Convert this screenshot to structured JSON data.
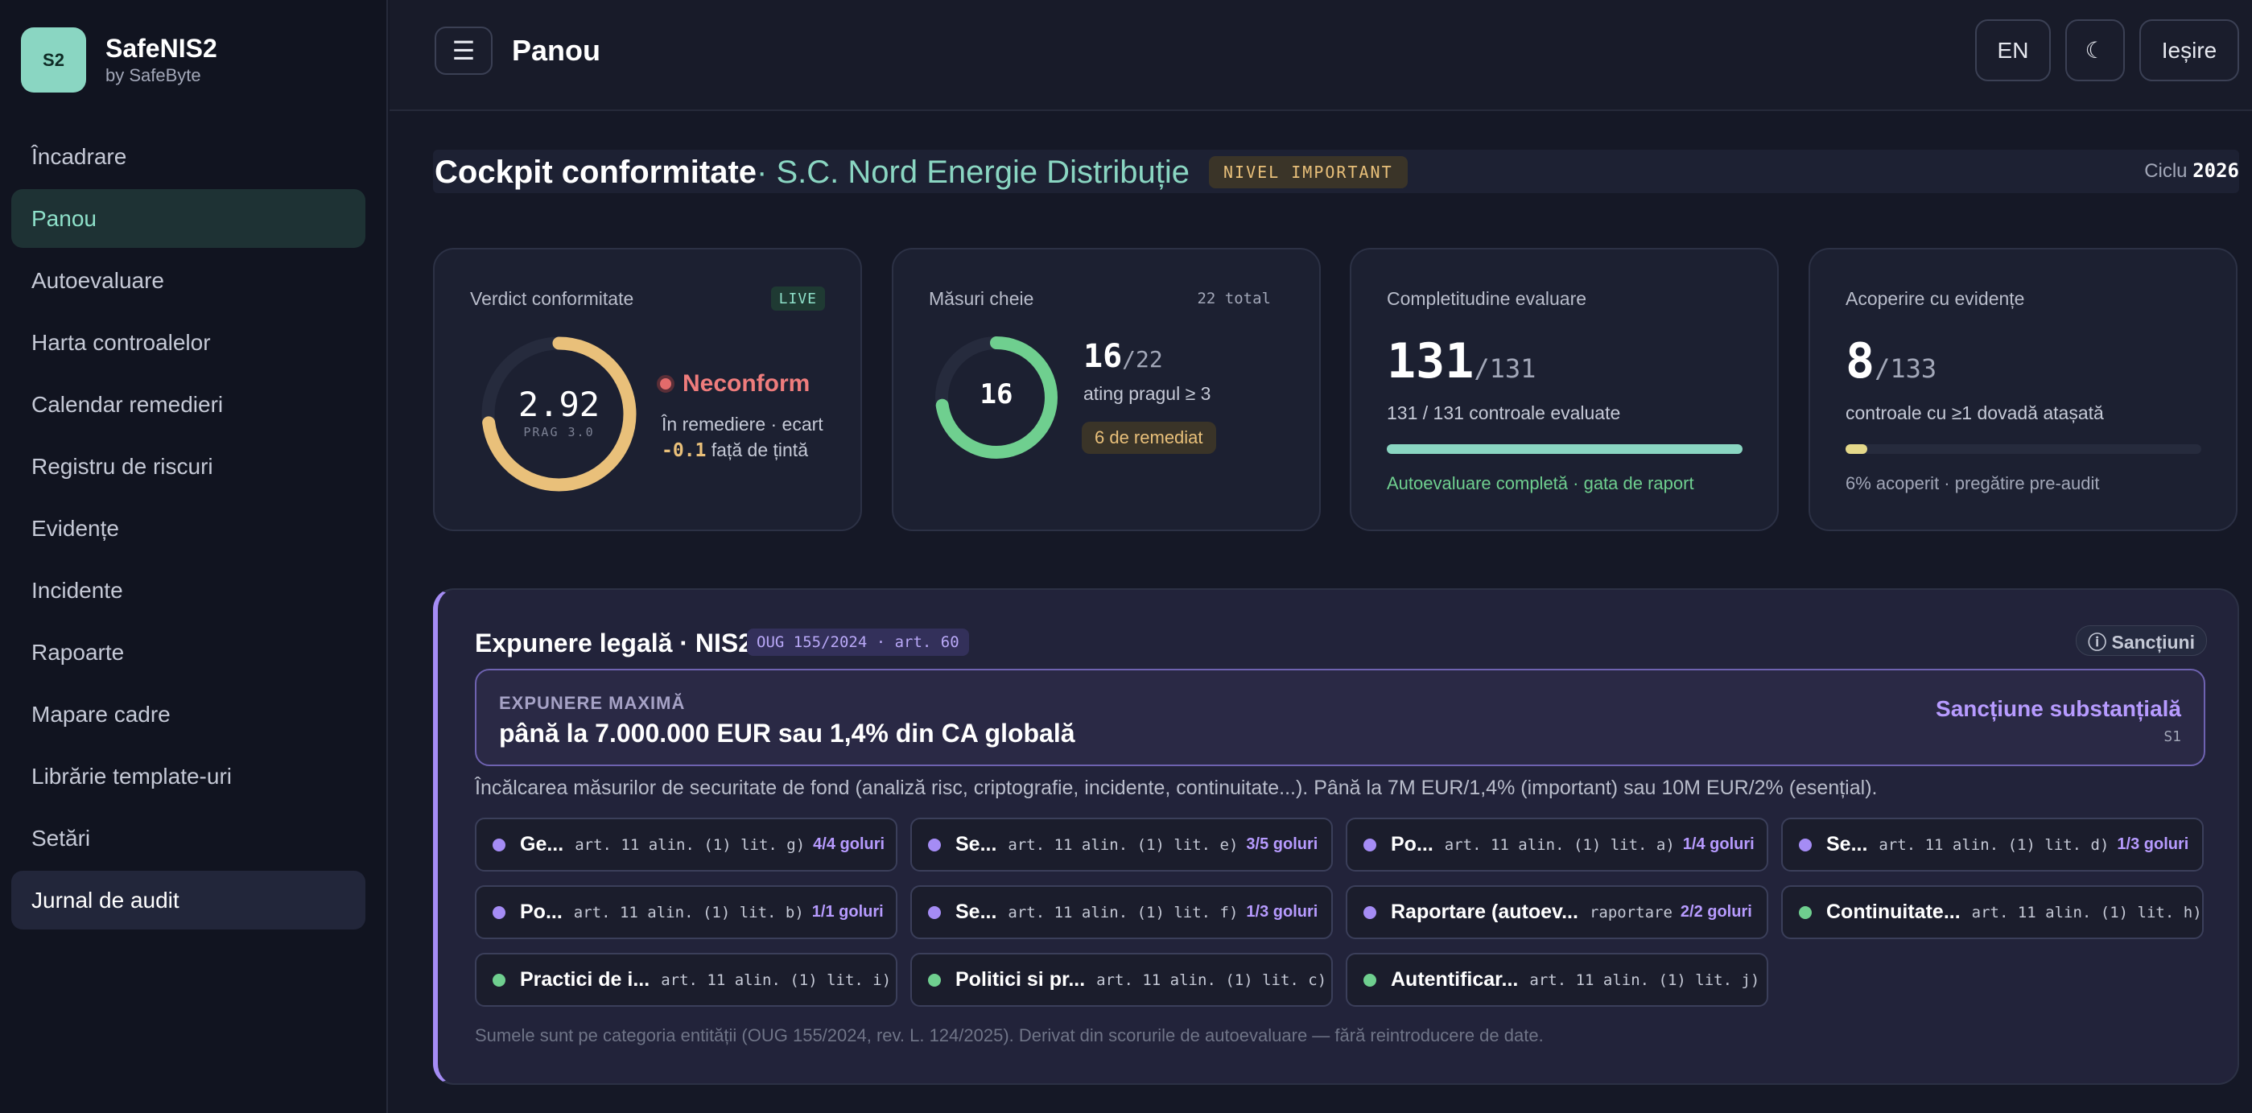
{
  "brand": {
    "logo": "S2",
    "name": "SafeNIS2",
    "sub": "by SafeByte"
  },
  "sidebar": {
    "items": [
      {
        "label": "Încadrare"
      },
      {
        "label": "Panou"
      },
      {
        "label": "Autoevaluare"
      },
      {
        "label": "Harta controalelor"
      },
      {
        "label": "Calendar remedieri"
      },
      {
        "label": "Registru de riscuri"
      },
      {
        "label": "Evidențe"
      },
      {
        "label": "Incidente"
      },
      {
        "label": "Rapoarte"
      },
      {
        "label": "Mapare cadre"
      },
      {
        "label": "Librărie template-uri"
      },
      {
        "label": "Setări"
      },
      {
        "label": "Jurnal de audit"
      }
    ]
  },
  "topbar": {
    "menu_icon": "☰",
    "title": "Panou",
    "lang": "EN",
    "theme_icon": "☾",
    "logout": "Ieșire"
  },
  "header": {
    "title": "Cockpit conformitate",
    "org": "· S.C. Nord Energie Distribuție",
    "level": "NIVEL IMPORTANT",
    "cycle_label": "Ciclu",
    "cycle_value": "2026"
  },
  "cards": {
    "verdict": {
      "label": "Verdict conformitate",
      "chip": "LIVE",
      "score": "2.92",
      "threshold": "PRAG 3.0",
      "score_fraction": 0.73,
      "status": "Neconform",
      "note1": "În remediere · ecart",
      "delta": "-0.1",
      "note2": "față de țintă"
    },
    "measures": {
      "label": "Măsuri cheie",
      "total": "22 total",
      "center": "16",
      "value": "16",
      "den": "/22",
      "sub": "ating pragul ≥ 3",
      "remediat": "6 de remediat",
      "fraction": 0.727
    },
    "completeness": {
      "label": "Completitudine evaluare",
      "value": "131",
      "den": "/131",
      "sub": "131 / 131 controale evaluate",
      "progress": 1.0,
      "foot": "Autoevaluare completă · gata de raport"
    },
    "evidence": {
      "label": "Acoperire cu evidențe",
      "value": "8",
      "den": "/133",
      "sub": "controale cu ≥1 dovadă atașată",
      "progress": 0.06,
      "foot": "6% acoperit · pregătire pre-audit"
    }
  },
  "legal": {
    "title": "Expunere legală · NIS2",
    "tag": "OUG 155/2024 · art. 60",
    "sanctions_btn": "ⓘ Sancțiuni",
    "exposure_label": "EXPUNERE MAXIMĂ",
    "exposure_value": "până la 7.000.000 EUR sau 1,4% din CA globală",
    "exposure_type": "Sancțiune substanțială",
    "exposure_code": "S1",
    "desc": "Încălcarea măsurilor de securitate de fond (analiză risc, criptografie, incidente, continuitate...). Până la 7M EUR/1,4% (important) sau 10M EUR/2% (esențial).",
    "articles": [
      {
        "name": "Ge...",
        "ref": "art. 11 alin. (1) lit. g)",
        "goals": "4/4 goluri",
        "color": "#a58cf5"
      },
      {
        "name": "Se...",
        "ref": "art. 11 alin. (1) lit. e)",
        "goals": "3/5 goluri",
        "color": "#a58cf5"
      },
      {
        "name": "Po...",
        "ref": "art. 11 alin. (1) lit. a)",
        "goals": "1/4 goluri",
        "color": "#a58cf5"
      },
      {
        "name": "Se...",
        "ref": "art. 11 alin. (1) lit. d)",
        "goals": "1/3 goluri",
        "color": "#a58cf5"
      },
      {
        "name": "Po...",
        "ref": "art. 11 alin. (1) lit. b)",
        "goals": "1/1 goluri",
        "color": "#a58cf5"
      },
      {
        "name": "Se...",
        "ref": "art. 11 alin. (1) lit. f)",
        "goals": "1/3 goluri",
        "color": "#a58cf5"
      },
      {
        "name": "Raportare (autoev...",
        "ref": "raportare",
        "goals": "2/2 goluri",
        "color": "#a58cf5"
      },
      {
        "name": "Continuitate...",
        "ref": "art. 11 alin. (1) lit. h)",
        "goals": "",
        "color": "#6fcf8f"
      },
      {
        "name": "Practici de i...",
        "ref": "art. 11 alin. (1) lit. i)",
        "goals": "",
        "color": "#6fcf8f"
      },
      {
        "name": "Politici si pr...",
        "ref": "art. 11 alin. (1) lit. c)",
        "goals": "",
        "color": "#6fcf8f"
      },
      {
        "name": "Autentificar...",
        "ref": "art. 11 alin. (1) lit. j)",
        "goals": "",
        "color": "#6fcf8f"
      }
    ],
    "foot": "Sumele sunt pe categoria entității (OUG 155/2024, rev. L. 124/2025). Derivat din scorurile de autoevaluare — fără reintroducere de date."
  },
  "colors": {
    "accent": "#8ad6c2",
    "warn": "#e9c07a",
    "danger": "#ee7c7c",
    "violet": "#a58cf5",
    "green": "#6fcf8f"
  }
}
